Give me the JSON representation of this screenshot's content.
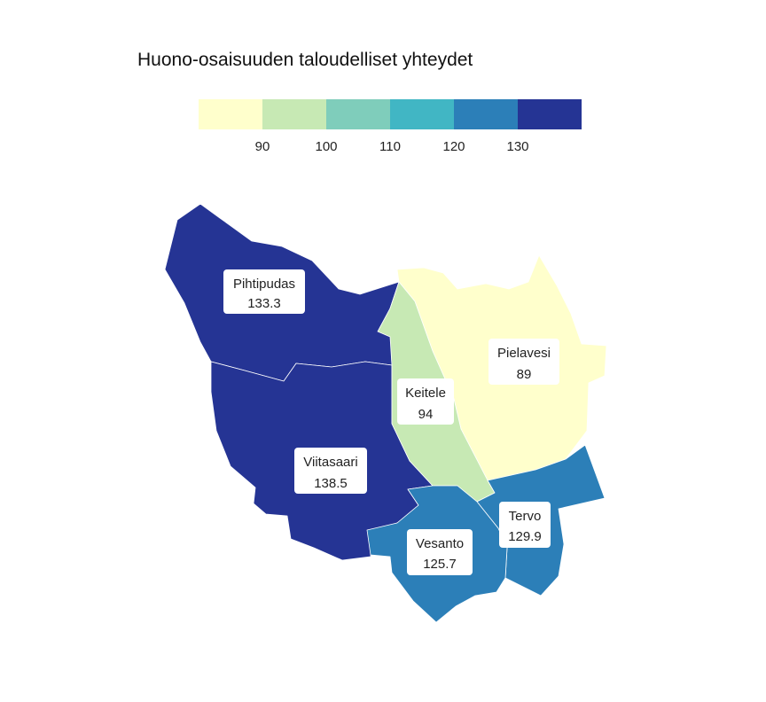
{
  "title": "Huono-osaisuuden taloudelliset yhteydet",
  "legend": {
    "colors": [
      "#ffffcc",
      "#c7e9b4",
      "#7fcdbb",
      "#41b6c4",
      "#2c7fb8",
      "#253494"
    ],
    "ticks": [
      "90",
      "100",
      "110",
      "120",
      "130"
    ]
  },
  "regions": [
    {
      "name": "Pihtipudas",
      "value": "133.3",
      "color": "#253494"
    },
    {
      "name": "Viitasaari",
      "value": "138.5",
      "color": "#253494"
    },
    {
      "name": "Pielavesi",
      "value": "89",
      "color": "#ffffcc"
    },
    {
      "name": "Keitele",
      "value": "94",
      "color": "#c7e9b4"
    },
    {
      "name": "Tervo",
      "value": "129.9",
      "color": "#2c7fb8"
    },
    {
      "name": "Vesanto",
      "value": "125.7",
      "color": "#2c7fb8"
    }
  ]
}
